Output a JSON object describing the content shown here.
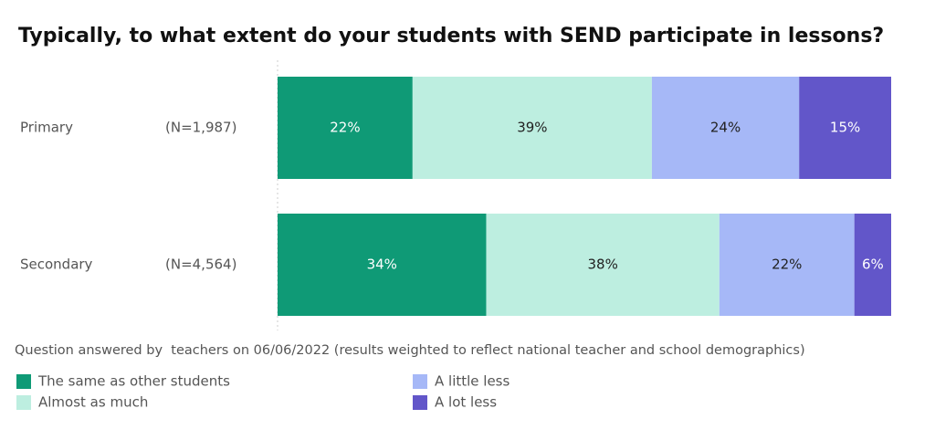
{
  "chart_data": {
    "type": "stacked-bar",
    "title": "Typically, to what extent do your students with SEND participate in lessons?",
    "categories": [
      "Primary",
      "Secondary"
    ],
    "category_notes": [
      "(N=1,987)",
      "(N=4,564)"
    ],
    "xlim": [
      0,
      100
    ],
    "series": [
      {
        "name": "The same as other students",
        "color": "#0f9a76",
        "values": [
          22,
          34
        ],
        "value_labels": [
          "22%",
          "34%"
        ]
      },
      {
        "name": "Almost as much",
        "color": "#bdeee0",
        "values": [
          39,
          38
        ],
        "value_labels": [
          "39%",
          "38%"
        ]
      },
      {
        "name": "A little less",
        "color": "#a6b8f7",
        "values": [
          24,
          22
        ],
        "value_labels": [
          "24%",
          "22%"
        ]
      },
      {
        "name": "A lot less",
        "color": "#6256c9",
        "values": [
          15,
          6
        ],
        "value_labels": [
          "15%",
          "6%"
        ]
      }
    ],
    "footnote": "Question answered by  teachers on 06/06/2022 (results weighted to reflect national teacher and school demographics)"
  }
}
